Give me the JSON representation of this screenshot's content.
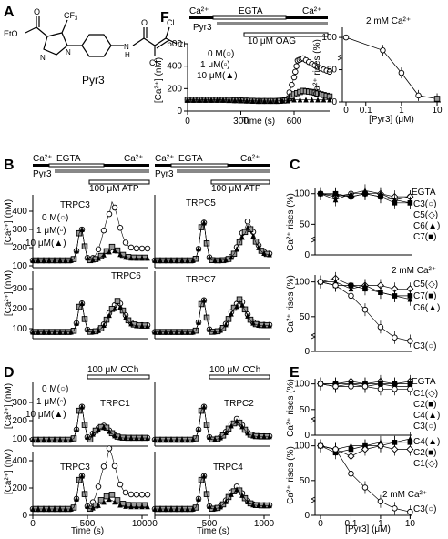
{
  "panels": {
    "A": {
      "letter": "A",
      "compound_name": "Pyr3",
      "atoms": {
        "cf3": "CF",
        "cf3_sub": "3",
        "eto": "EtO",
        "n1": "N",
        "n2": "N",
        "n3": "N",
        "h": "H",
        "cl1": "Cl",
        "cl2": "Cl",
        "cl3": "Cl",
        "o1": "O",
        "o2": "O"
      }
    },
    "F": {
      "letter": "F",
      "bars": {
        "ca_left": "Ca²⁺",
        "egta": "EGTA",
        "ca_right": "Ca²⁺",
        "pyr3": "Pyr3",
        "oag": "10 μM OAG"
      },
      "legend": [
        "0 M(○)",
        "1 μM(▫)",
        "10 μM(▲)"
      ],
      "ylabel": "[Ca²⁺] (nM)",
      "xlabel": "Time (s)",
      "yticks": [
        "0",
        "200",
        "400",
        "600"
      ],
      "xticks": [
        "0",
        "300",
        "600"
      ],
      "dose": {
        "title": "2 mM Ca²⁺",
        "ylabel": "Ca²⁺ rises (%)",
        "xlabel": "[Pyr3] (μM)",
        "yticks": [
          "0",
          "50",
          "100"
        ],
        "xticks": [
          "0",
          "0.1",
          "1",
          "10"
        ]
      }
    },
    "B": {
      "letter": "B",
      "bars": {
        "ca_left": "Ca²⁺",
        "egta": "EGTA",
        "ca_right": "Ca²⁺",
        "pyr3": "Pyr3",
        "atp": "100 μM ATP"
      },
      "legend": [
        "0 M(○)",
        "1 μM(▫)",
        "10 μM(▲)"
      ],
      "labels": [
        "TRPC3",
        "TRPC5",
        "TRPC6",
        "TRPC7"
      ],
      "ylabel": "[Ca²⁺] (nM)",
      "yticks_top": [
        "100",
        "200",
        "300",
        "400"
      ],
      "yticks_bottom": [
        "100",
        "200",
        "300"
      ]
    },
    "D": {
      "letter": "D",
      "bars": {
        "cch": "100 μM CCh"
      },
      "legend": [
        "0 M(○)",
        "1 μM(▫)",
        "10 μM(▲)"
      ],
      "labels": [
        "TRPC1",
        "TRPC2",
        "TRPC3",
        "TRPC4"
      ],
      "ylabel": "[Ca²⁺] (nM)",
      "xlabel": "Time (s)",
      "yticks_top": [
        "100",
        "200",
        "300"
      ],
      "yticks_bottom": [
        "0",
        "200",
        "400"
      ],
      "xticks": [
        "0",
        "500",
        "1000"
      ]
    },
    "C": {
      "letter": "C",
      "top": {
        "title": "EGTA",
        "series": [
          "C3(○)",
          "C5(◇)",
          "C6(▲)",
          "C7(■)"
        ]
      },
      "bottom": {
        "title": "2 mM Ca²⁺",
        "series": [
          "C5(◇)",
          "C7(■)",
          "C6(▲)",
          "C3(○)"
        ]
      },
      "ylabel": "Ca²⁺ rises (%)",
      "yticks": [
        "0",
        "50",
        "100"
      ]
    },
    "E": {
      "letter": "E",
      "top": {
        "title": "EGTA",
        "series": [
          "C1(◇)",
          "C2(■)",
          "C4(▲)",
          "C3(○)"
        ]
      },
      "bottom": {
        "title": "2 mM Ca²⁺",
        "series": [
          "C4(▲)",
          "C2(■)",
          "C1(◇)",
          "C3(○)"
        ]
      },
      "ylabel": "Ca²⁺ rises (%)",
      "xlabel": "[Pyr3] (μM)",
      "yticks": [
        "0",
        "50",
        "100"
      ],
      "xticks": [
        "0",
        "0.1",
        "1",
        "10"
      ]
    }
  },
  "chart_data": [
    {
      "id": "F-trace",
      "type": "line",
      "xlabel": "Time (s)",
      "ylabel": "[Ca²⁺] (nM)",
      "xlim": [
        0,
        800
      ],
      "ylim": [
        0,
        600
      ],
      "series": [
        {
          "name": "0 M(○)",
          "x": [
            0,
            100,
            200,
            300,
            400,
            500,
            560,
            600,
            620,
            650,
            700,
            750,
            800
          ],
          "y": [
            100,
            100,
            100,
            95,
            90,
            90,
            100,
            300,
            450,
            470,
            420,
            380,
            350
          ]
        },
        {
          "name": "1 μM(▫)",
          "x": [
            0,
            100,
            200,
            300,
            400,
            500,
            560,
            600,
            650,
            700,
            750,
            800
          ],
          "y": [
            100,
            100,
            100,
            95,
            90,
            90,
            95,
            150,
            180,
            170,
            150,
            130
          ]
        },
        {
          "name": "10 μM(▲)",
          "x": [
            0,
            100,
            200,
            300,
            400,
            500,
            600,
            700,
            800
          ],
          "y": [
            100,
            100,
            100,
            95,
            90,
            90,
            100,
            100,
            100
          ]
        }
      ]
    },
    {
      "id": "F-dose",
      "type": "scatter",
      "title": "2 mM Ca²⁺",
      "xlabel": "[Pyr3] (μM)",
      "ylabel": "Ca²⁺ rises (%)",
      "xscale": "log",
      "ylim": [
        0,
        110
      ],
      "series": [
        {
          "name": "",
          "x": [
            0,
            0.3,
            1,
            3,
            10
          ],
          "y": [
            100,
            80,
            45,
            10,
            5
          ]
        }
      ]
    },
    {
      "id": "C-EGTA",
      "type": "scatter",
      "title": "EGTA",
      "ylabel": "Ca²⁺ rises (%)",
      "xscale": "log",
      "ylim": [
        0,
        110
      ],
      "series": [
        {
          "name": "C3(○)",
          "x": [
            0,
            0.03,
            0.1,
            0.3,
            1,
            3,
            10
          ],
          "y": [
            100,
            95,
            100,
            100,
            95,
            90,
            95
          ]
        },
        {
          "name": "C5(◇)",
          "x": [
            0,
            0.03,
            0.1,
            0.3,
            1,
            3,
            10
          ],
          "y": [
            100,
            98,
            95,
            100,
            100,
            95,
            95
          ]
        },
        {
          "name": "C6(▲)",
          "x": [
            0,
            0.03,
            0.1,
            0.3,
            1,
            3,
            10
          ],
          "y": [
            100,
            90,
            100,
            105,
            100,
            90,
            85
          ]
        },
        {
          "name": "C7(■)",
          "x": [
            0,
            0.03,
            0.1,
            0.3,
            1,
            3,
            10
          ],
          "y": [
            100,
            100,
            95,
            100,
            95,
            85,
            85
          ]
        }
      ]
    },
    {
      "id": "C-Ca",
      "type": "scatter",
      "title": "2 mM Ca²⁺",
      "ylabel": "Ca²⁺ rises (%)",
      "xscale": "log",
      "ylim": [
        0,
        110
      ],
      "series": [
        {
          "name": "C5(◇)",
          "x": [
            0,
            0.03,
            0.1,
            0.3,
            1,
            3,
            10
          ],
          "y": [
            100,
            105,
            95,
            95,
            95,
            90,
            90
          ]
        },
        {
          "name": "C7(■)",
          "x": [
            0,
            0.03,
            0.1,
            0.3,
            1,
            3,
            10
          ],
          "y": [
            100,
            95,
            95,
            90,
            85,
            80,
            80
          ]
        },
        {
          "name": "C6(▲)",
          "x": [
            0,
            0.03,
            0.1,
            0.3,
            1,
            3,
            10
          ],
          "y": [
            100,
            100,
            90,
            95,
            85,
            80,
            75
          ]
        },
        {
          "name": "C3(○)",
          "x": [
            0,
            0.03,
            0.1,
            0.3,
            1,
            3,
            10
          ],
          "y": [
            100,
            95,
            80,
            60,
            35,
            20,
            15
          ]
        }
      ]
    },
    {
      "id": "E-EGTA",
      "type": "scatter",
      "title": "EGTA",
      "ylabel": "Ca²⁺ rises (%)",
      "xscale": "log",
      "ylim": [
        0,
        110
      ],
      "series": [
        {
          "name": "C1(◇)",
          "x": [
            0,
            0.03,
            0.1,
            0.3,
            1,
            3,
            10
          ],
          "y": [
            100,
            100,
            105,
            100,
            105,
            100,
            105
          ]
        },
        {
          "name": "C2(■)",
          "x": [
            0,
            0.03,
            0.1,
            0.3,
            1,
            3,
            10
          ],
          "y": [
            100,
            100,
            100,
            100,
            100,
            100,
            100
          ]
        },
        {
          "name": "C4(▲)",
          "x": [
            0,
            0.03,
            0.1,
            0.3,
            1,
            3,
            10
          ],
          "y": [
            100,
            95,
            100,
            95,
            100,
            95,
            95
          ]
        },
        {
          "name": "C3(○)",
          "x": [
            0,
            0.03,
            0.1,
            0.3,
            1,
            3,
            10
          ],
          "y": [
            100,
            95,
            95,
            95,
            90,
            90,
            90
          ]
        }
      ]
    },
    {
      "id": "E-Ca",
      "type": "scatter",
      "title": "2 mM Ca²⁺",
      "xlabel": "[Pyr3] (μM)",
      "ylabel": "Ca²⁺ rises (%)",
      "xscale": "log",
      "ylim": [
        0,
        110
      ],
      "series": [
        {
          "name": "C4(▲)",
          "x": [
            0,
            0.03,
            0.1,
            0.3,
            1,
            3,
            10
          ],
          "y": [
            100,
            95,
            100,
            100,
            105,
            105,
            110
          ]
        },
        {
          "name": "C2(■)",
          "x": [
            0,
            0.03,
            0.1,
            0.3,
            1,
            3,
            10
          ],
          "y": [
            100,
            90,
            95,
            100,
            100,
            105,
            105
          ]
        },
        {
          "name": "C1(◇)",
          "x": [
            0,
            0.03,
            0.1,
            0.3,
            1,
            3,
            10
          ],
          "y": [
            100,
            95,
            85,
            95,
            100,
            95,
            95
          ]
        },
        {
          "name": "C3(○)",
          "x": [
            0,
            0.03,
            0.1,
            0.3,
            1,
            3,
            10
          ],
          "y": [
            100,
            95,
            60,
            40,
            20,
            10,
            5
          ]
        }
      ]
    }
  ]
}
